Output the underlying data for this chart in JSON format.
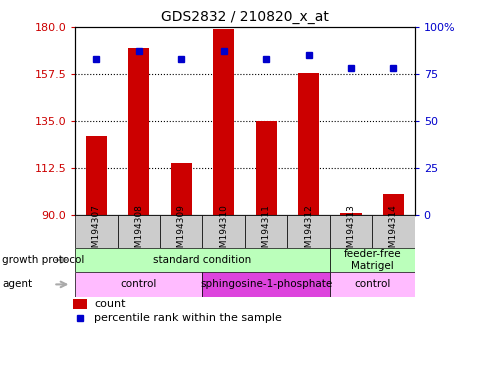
{
  "title": "GDS2832 / 210820_x_at",
  "samples": [
    "GSM194307",
    "GSM194308",
    "GSM194309",
    "GSM194310",
    "GSM194311",
    "GSM194312",
    "GSM194313",
    "GSM194314"
  ],
  "counts": [
    128,
    170,
    115,
    179,
    135,
    158,
    91,
    100
  ],
  "percentile_ranks": [
    83,
    87,
    83,
    87,
    83,
    85,
    78,
    78
  ],
  "ylim_left": [
    90,
    180
  ],
  "ylim_right": [
    0,
    100
  ],
  "yticks_left": [
    90,
    112.5,
    135,
    157.5,
    180
  ],
  "yticks_right": [
    0,
    25,
    50,
    75,
    100
  ],
  "bar_color": "#cc0000",
  "dot_color": "#0000cc",
  "growth_protocol_groups": [
    {
      "label": "standard condition",
      "start": 0,
      "end": 6,
      "color": "#bbffbb"
    },
    {
      "label": "feeder-free\nMatrigel",
      "start": 6,
      "end": 8,
      "color": "#bbffbb"
    }
  ],
  "agent_groups": [
    {
      "label": "control",
      "start": 0,
      "end": 3,
      "color": "#ffbbff"
    },
    {
      "label": "sphingosine-1-phosphate",
      "start": 3,
      "end": 6,
      "color": "#dd44dd"
    },
    {
      "label": "control",
      "start": 6,
      "end": 8,
      "color": "#ffbbff"
    }
  ],
  "legend_count_label": "count",
  "legend_pct_label": "percentile rank within the sample",
  "left_axis_color": "#cc0000",
  "right_axis_color": "#0000cc",
  "sample_box_color": "#cccccc",
  "arrow_color": "#aaaaaa"
}
